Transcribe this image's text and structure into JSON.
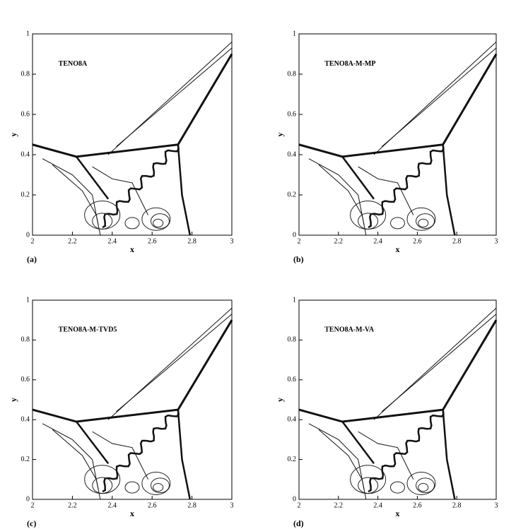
{
  "chart_data": [
    {
      "type": "contour",
      "title": "TENO8A",
      "panel_label": "(a)",
      "xlabel": "x",
      "ylabel": "y",
      "xlim": [
        2,
        3
      ],
      "ylim": [
        0,
        1
      ],
      "xticks": [
        2,
        2.2,
        2.4,
        2.6,
        2.8,
        3
      ],
      "yticks": [
        0,
        0.2,
        0.4,
        0.6,
        0.8,
        1
      ]
    },
    {
      "type": "contour",
      "title": "TENO8A-M-MP",
      "panel_label": "(b)",
      "xlabel": "x",
      "ylabel": "y",
      "xlim": [
        2,
        3
      ],
      "ylim": [
        0,
        1
      ],
      "xticks": [
        2,
        2.2,
        2.4,
        2.6,
        2.8,
        3
      ],
      "yticks": [
        0,
        0.2,
        0.4,
        0.6,
        0.8,
        1
      ]
    },
    {
      "type": "contour",
      "title": "TENO8A-M-TVD5",
      "panel_label": "(c)",
      "xlabel": "x",
      "ylabel": "y",
      "xlim": [
        2,
        3
      ],
      "ylim": [
        0,
        1
      ],
      "xticks": [
        2,
        2.2,
        2.4,
        2.6,
        2.8,
        3
      ],
      "yticks": [
        0,
        0.2,
        0.4,
        0.6,
        0.8,
        1
      ]
    },
    {
      "type": "contour",
      "title": "TENO8A-M-VA",
      "panel_label": "(d)",
      "xlabel": "x",
      "ylabel": "y",
      "xlim": [
        2,
        3
      ],
      "ylim": [
        0,
        1
      ],
      "xticks": [
        2,
        2.2,
        2.4,
        2.6,
        2.8,
        3
      ],
      "yticks": [
        0,
        0.2,
        0.4,
        0.6,
        0.8,
        1
      ]
    }
  ]
}
